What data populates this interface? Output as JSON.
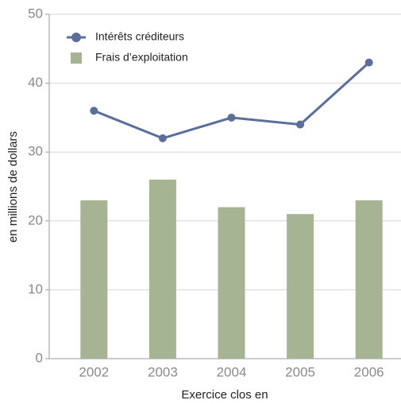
{
  "chart_data": {
    "type": "combo",
    "x_label": "Exercice clos en",
    "y_label": "en millions de dollars",
    "categories": [
      "2002",
      "2003",
      "2004",
      "2005",
      "2006"
    ],
    "series": [
      {
        "name": "Intérêts créditeurs",
        "type": "line",
        "color": "#5a6d9b",
        "values": [
          36,
          32,
          35,
          34,
          43
        ]
      },
      {
        "name": "Frais d’exploitation",
        "type": "bar",
        "color": "#a6b493",
        "values": [
          23,
          26,
          22,
          21,
          23
        ]
      }
    ],
    "ylim": [
      0,
      50
    ],
    "yticks": [
      0,
      10,
      20,
      30,
      40,
      50
    ],
    "grid": true,
    "legend": "top-left"
  }
}
